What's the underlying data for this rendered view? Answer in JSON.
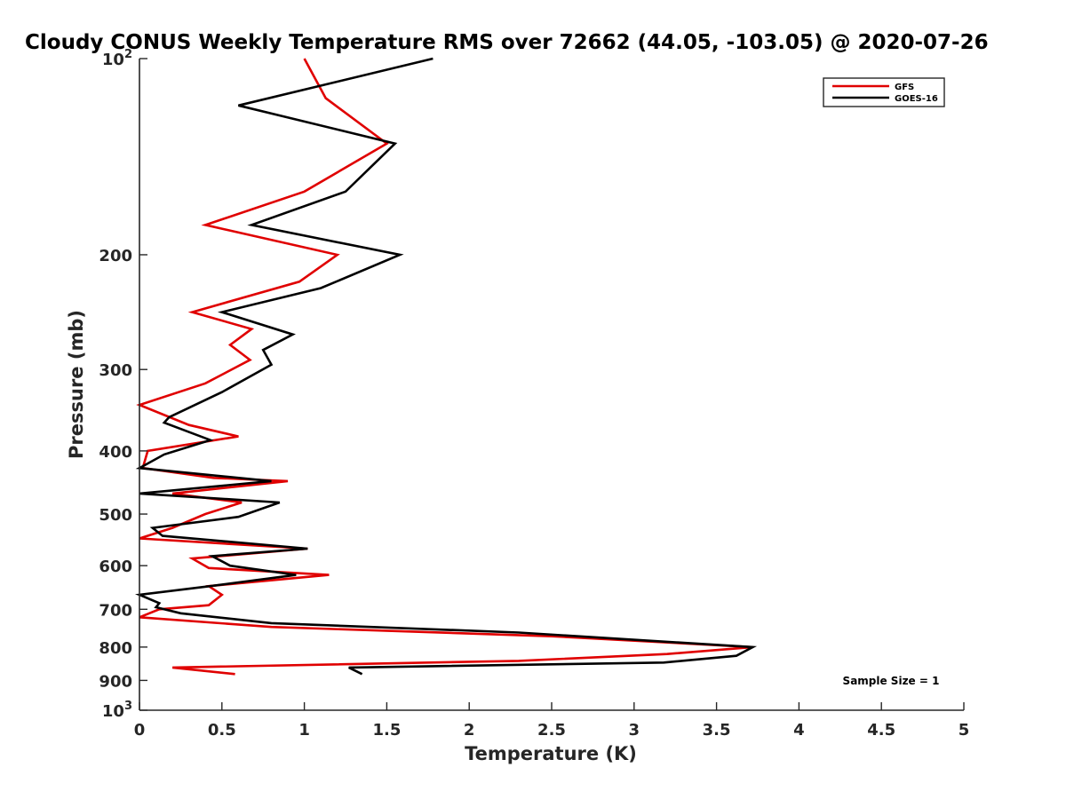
{
  "chart_data": {
    "type": "line",
    "title": "Cloudy CONUS Weekly Temperature RMS over 72662 (44.05, -103.05) @ 2020-07-26",
    "xlabel": "Temperature (K)",
    "ylabel": "Pressure (mb)",
    "xlim": [
      0,
      5
    ],
    "ylim": [
      100,
      1000
    ],
    "y_scale": "log",
    "y_reversed": true,
    "x_ticks": [
      "0",
      "0.5",
      "1",
      "1.5",
      "2",
      "2.5",
      "3",
      "3.5",
      "4",
      "4.5",
      "5"
    ],
    "x_tick_values": [
      0,
      0.5,
      1,
      1.5,
      2,
      2.5,
      3,
      3.5,
      4,
      4.5,
      5
    ],
    "y_ticks": [
      {
        "value": 100,
        "base": "10",
        "exp": "2"
      },
      {
        "value": 200,
        "label": "200"
      },
      {
        "value": 300,
        "label": "300"
      },
      {
        "value": 400,
        "label": "400"
      },
      {
        "value": 500,
        "label": "500"
      },
      {
        "value": 600,
        "label": "600"
      },
      {
        "value": 700,
        "label": "700"
      },
      {
        "value": 800,
        "label": "800"
      },
      {
        "value": 900,
        "label": "900"
      },
      {
        "value": 1000,
        "base": "10",
        "exp": "3"
      }
    ],
    "grid": false,
    "legend_position": "top-right",
    "annotation": "Sample Size = 1",
    "series": [
      {
        "name": "GFS",
        "color": "#e00000",
        "points": [
          [
            1.0,
            100
          ],
          [
            1.13,
            115
          ],
          [
            1.5,
            135
          ],
          [
            1.0,
            160
          ],
          [
            0.4,
            180
          ],
          [
            1.2,
            200
          ],
          [
            0.97,
            220
          ],
          [
            0.32,
            245
          ],
          [
            0.68,
            260
          ],
          [
            0.55,
            275
          ],
          [
            0.67,
            290
          ],
          [
            0.4,
            315
          ],
          [
            0.0,
            340
          ],
          [
            0.3,
            365
          ],
          [
            0.6,
            380
          ],
          [
            0.05,
            400
          ],
          [
            0.02,
            425
          ],
          [
            0.45,
            440
          ],
          [
            0.9,
            445
          ],
          [
            0.2,
            465
          ],
          [
            0.62,
            480
          ],
          [
            0.4,
            500
          ],
          [
            0.2,
            525
          ],
          [
            0.0,
            545
          ],
          [
            1.02,
            565
          ],
          [
            0.32,
            585
          ],
          [
            0.42,
            605
          ],
          [
            1.15,
            620
          ],
          [
            0.42,
            645
          ],
          [
            0.5,
            665
          ],
          [
            0.42,
            690
          ],
          [
            0.12,
            700
          ],
          [
            0.0,
            720
          ],
          [
            0.8,
            745
          ],
          [
            2.5,
            770
          ],
          [
            3.72,
            800
          ],
          [
            3.2,
            820
          ],
          [
            2.3,
            840
          ],
          [
            0.2,
            860
          ],
          [
            0.58,
            880
          ]
        ]
      },
      {
        "name": "GOES-16",
        "color": "#000000",
        "points": [
          [
            1.78,
            100
          ],
          [
            0.6,
            118
          ],
          [
            1.55,
            135
          ],
          [
            1.25,
            160
          ],
          [
            0.68,
            180
          ],
          [
            1.58,
            200
          ],
          [
            1.1,
            225
          ],
          [
            0.5,
            245
          ],
          [
            0.93,
            265
          ],
          [
            0.75,
            280
          ],
          [
            0.8,
            295
          ],
          [
            0.5,
            325
          ],
          [
            0.18,
            355
          ],
          [
            0.15,
            362
          ],
          [
            0.43,
            385
          ],
          [
            0.15,
            405
          ],
          [
            0.0,
            425
          ],
          [
            0.8,
            445
          ],
          [
            0.0,
            465
          ],
          [
            0.85,
            480
          ],
          [
            0.6,
            505
          ],
          [
            0.08,
            525
          ],
          [
            0.14,
            540
          ],
          [
            1.02,
            565
          ],
          [
            0.44,
            580
          ],
          [
            0.55,
            600
          ],
          [
            0.95,
            620
          ],
          [
            0.43,
            645
          ],
          [
            0.0,
            665
          ],
          [
            0.12,
            685
          ],
          [
            0.1,
            695
          ],
          [
            0.25,
            710
          ],
          [
            0.8,
            735
          ],
          [
            2.3,
            760
          ],
          [
            3.72,
            800
          ],
          [
            3.62,
            825
          ],
          [
            3.18,
            845
          ],
          [
            1.27,
            860
          ],
          [
            1.35,
            880
          ]
        ]
      }
    ]
  }
}
